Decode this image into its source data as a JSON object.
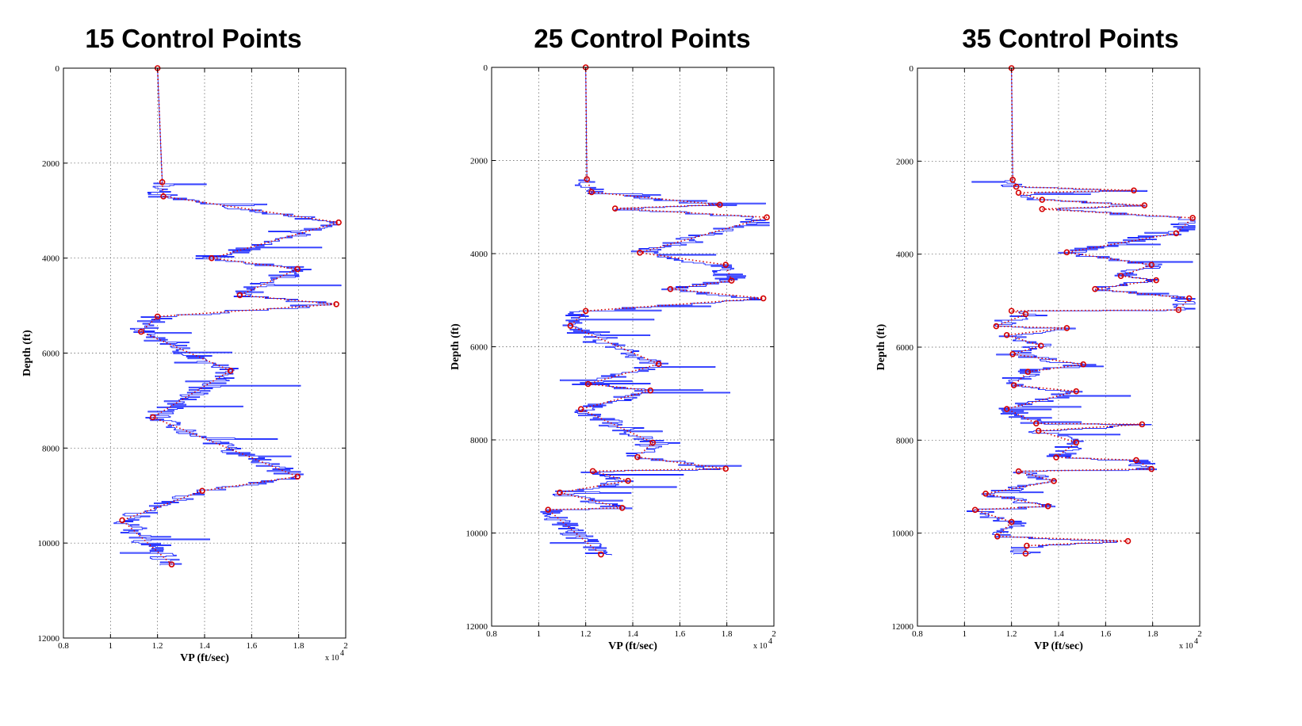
{
  "chart_data": [
    {
      "type": "line",
      "title": "15 Control Points",
      "xlabel": "VP (ft/sec)",
      "ylabel": "Depth (ft)",
      "x_multiplier": "x 10",
      "x_multiplier_exp": "4",
      "xlim": [
        8000,
        20000
      ],
      "ylim": [
        0,
        12000
      ],
      "y_reversed": true,
      "grid": true,
      "xticks": [
        "0.8",
        "1",
        "1.2",
        "1.4",
        "1.6",
        "1.8",
        "2"
      ],
      "yticks": [
        "0",
        "2000",
        "4000",
        "6000",
        "8000",
        "10000",
        "12000"
      ],
      "series": [
        {
          "color": "#d40000",
          "style": "dotted-markers",
          "points": [
            [
              12000,
              0
            ],
            [
              12200,
              2400
            ],
            [
              12250,
              2700
            ],
            [
              19700,
              3250
            ],
            [
              14300,
              4000
            ],
            [
              17950,
              4230
            ],
            [
              15500,
              4780
            ],
            [
              19600,
              4970
            ],
            [
              12000,
              5230
            ],
            [
              11300,
              5550
            ],
            [
              15100,
              6370
            ],
            [
              11800,
              7350
            ],
            [
              17950,
              8600
            ],
            [
              13900,
              8900
            ],
            [
              10500,
              9520
            ],
            [
              12600,
              10450
            ]
          ]
        }
      ]
    },
    {
      "type": "line",
      "title": "25 Control Points",
      "xlabel": "VP (ft/sec)",
      "ylabel": "Depth (ft)",
      "x_multiplier": "x 10",
      "x_multiplier_exp": "4",
      "xlim": [
        8000,
        20000
      ],
      "ylim": [
        0,
        12000
      ],
      "y_reversed": true,
      "grid": true,
      "xticks": [
        "0.8",
        "1",
        "1.2",
        "1.4",
        "1.6",
        "1.8",
        "2"
      ],
      "yticks": [
        "0",
        "2000",
        "4000",
        "6000",
        "8000",
        "10000",
        "12000"
      ],
      "series": [
        {
          "color": "#d40000",
          "style": "dotted-markers",
          "points": [
            [
              12000,
              0
            ],
            [
              12050,
              2400
            ],
            [
              12250,
              2680
            ],
            [
              17700,
              2950
            ],
            [
              13250,
              3030
            ],
            [
              19700,
              3220
            ],
            [
              14300,
              3980
            ],
            [
              17950,
              4240
            ],
            [
              18200,
              4580
            ],
            [
              15600,
              4760
            ],
            [
              19550,
              4960
            ],
            [
              12000,
              5230
            ],
            [
              11350,
              5550
            ],
            [
              15100,
              6370
            ],
            [
              12100,
              6800
            ],
            [
              14750,
              6940
            ],
            [
              11800,
              7340
            ],
            [
              14850,
              8060
            ],
            [
              14200,
              8370
            ],
            [
              17950,
              8620
            ],
            [
              12300,
              8670
            ],
            [
              13800,
              8880
            ],
            [
              10900,
              9130
            ],
            [
              13550,
              9460
            ],
            [
              10400,
              9500
            ],
            [
              12650,
              10460
            ]
          ]
        }
      ]
    },
    {
      "type": "line",
      "title": "35 Control Points",
      "xlabel": "VP (ft/sec)",
      "ylabel": "Depth (ft)",
      "x_multiplier": "x 10",
      "x_multiplier_exp": "4",
      "xlim": [
        8000,
        20000
      ],
      "ylim": [
        0,
        12000
      ],
      "y_reversed": true,
      "grid": true,
      "xticks": [
        "0.8",
        "1",
        "1.2",
        "1.4",
        "1.6",
        "1.8",
        "2"
      ],
      "yticks": [
        "0",
        "2000",
        "4000",
        "6000",
        "8000",
        "10000",
        "12000"
      ],
      "series": [
        {
          "color": "#d40000",
          "style": "dotted-markers",
          "points": [
            [
              12000,
              0
            ],
            [
              12050,
              2400
            ],
            [
              12200,
              2550
            ],
            [
              17200,
              2630
            ],
            [
              12300,
              2680
            ],
            [
              13300,
              2830
            ],
            [
              17650,
              2950
            ],
            [
              13300,
              3030
            ],
            [
              19700,
              3220
            ],
            [
              19000,
              3550
            ],
            [
              14350,
              3960
            ],
            [
              17950,
              4230
            ],
            [
              16650,
              4470
            ],
            [
              18150,
              4560
            ],
            [
              15550,
              4750
            ],
            [
              19550,
              4950
            ],
            [
              19100,
              5200
            ],
            [
              12000,
              5220
            ],
            [
              12600,
              5290
            ],
            [
              11350,
              5550
            ],
            [
              14350,
              5590
            ],
            [
              11800,
              5740
            ],
            [
              13250,
              5970
            ],
            [
              12050,
              6150
            ],
            [
              15050,
              6370
            ],
            [
              12700,
              6530
            ],
            [
              12100,
              6820
            ],
            [
              14750,
              6950
            ],
            [
              11800,
              7330
            ],
            [
              13050,
              7640
            ],
            [
              17550,
              7660
            ],
            [
              13150,
              7800
            ],
            [
              14750,
              8050
            ],
            [
              13900,
              8370
            ],
            [
              17300,
              8430
            ],
            [
              17950,
              8620
            ],
            [
              12300,
              8670
            ],
            [
              13800,
              8880
            ],
            [
              10900,
              9150
            ],
            [
              13550,
              9420
            ],
            [
              10450,
              9500
            ],
            [
              12000,
              9760
            ],
            [
              11400,
              10070
            ],
            [
              16950,
              10170
            ],
            [
              12650,
              10270
            ],
            [
              12600,
              10440
            ]
          ]
        }
      ]
    }
  ]
}
